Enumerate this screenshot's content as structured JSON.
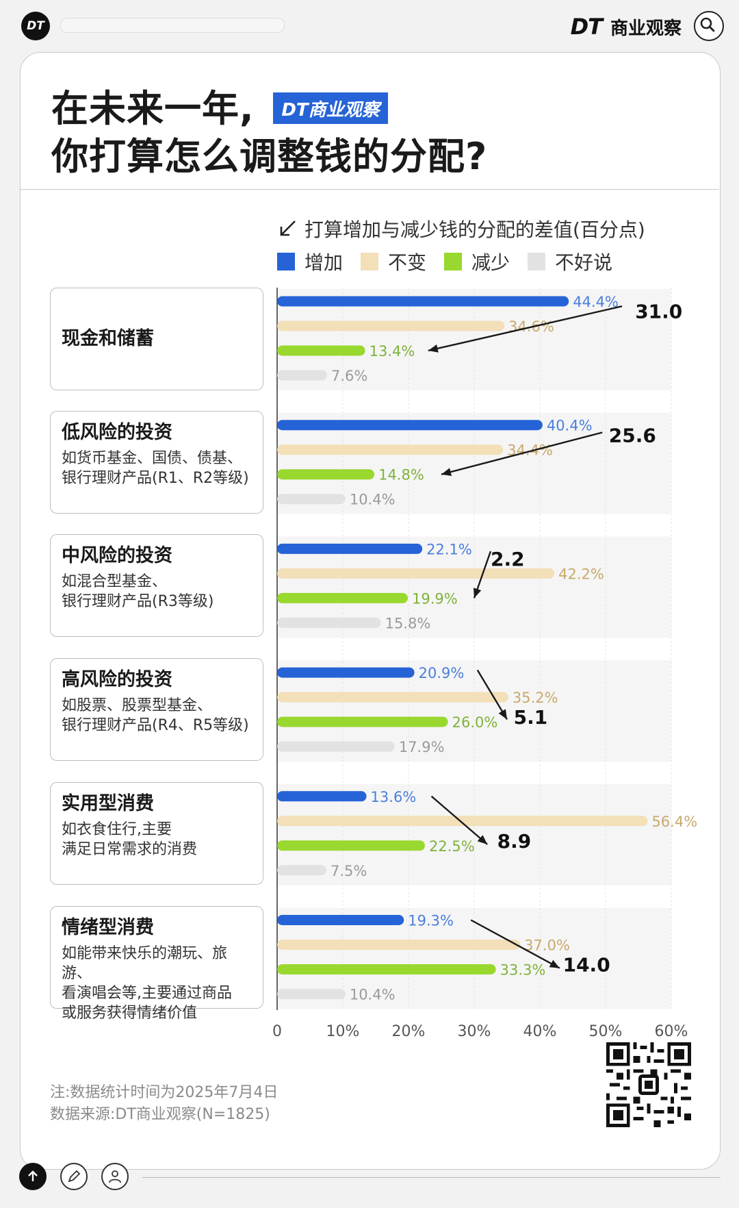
{
  "header": {
    "logo_text": "DT",
    "brand_dt": "DT",
    "brand_name": "商业观察"
  },
  "title": {
    "line1": "在未来一年,",
    "line2": "你打算怎么调整钱的分配?",
    "badge": "DT商业观察"
  },
  "legend": {
    "diff_label": "打算增加与减少钱的分配的差值(百分点)",
    "items": [
      {
        "label": "增加",
        "color": "#2563d6"
      },
      {
        "label": "不变",
        "color": "#f3dfb8"
      },
      {
        "label": "减少",
        "color": "#99d82f"
      },
      {
        "label": "不好说",
        "color": "#e2e2e2"
      }
    ]
  },
  "categories": [
    {
      "name": "现金和储蓄",
      "desc": ""
    },
    {
      "name": "低风险的投资",
      "desc": "如货币基金、国债、债基、\n银行理财产品(R1、R2等级)"
    },
    {
      "name": "中风险的投资",
      "desc": "如混合型基金、\n银行理财产品(R3等级)"
    },
    {
      "name": "高风险的投资",
      "desc": "如股票、股票型基金、\n银行理财产品(R4、R5等级)"
    },
    {
      "name": "实用型消费",
      "desc": "如衣食住行,主要\n满足日常需求的消费"
    },
    {
      "name": "情绪型消费",
      "desc": "如能带来快乐的潮玩、旅游、\n看演唱会等,主要通过商品\n或服务获得情绪价值"
    }
  ],
  "chart_data": {
    "type": "bar",
    "orientation": "horizontal",
    "categories": [
      "现金和储蓄",
      "低风险的投资",
      "中风险的投资",
      "高风险的投资",
      "实用型消费",
      "情绪型消费"
    ],
    "series": [
      {
        "name": "增加",
        "color": "#2563d6",
        "label_color": "#4a7fdc",
        "values": [
          44.4,
          40.4,
          22.1,
          20.9,
          13.6,
          19.3
        ]
      },
      {
        "name": "不变",
        "color": "#f3dfb8",
        "label_color": "#c9a96a",
        "values": [
          34.6,
          34.4,
          42.2,
          35.2,
          56.4,
          37.0
        ]
      },
      {
        "name": "减少",
        "color": "#99d82f",
        "label_color": "#7fb23a",
        "values": [
          13.4,
          14.8,
          19.9,
          26.0,
          22.5,
          33.3
        ]
      },
      {
        "name": "不好说",
        "color": "#e2e2e2",
        "label_color": "#9a9a9a",
        "values": [
          7.6,
          10.4,
          15.8,
          17.9,
          7.5,
          10.4
        ]
      }
    ],
    "differences": [
      "31.0",
      "25.6",
      "2.2",
      "5.1",
      "8.9",
      "14.0"
    ],
    "xlim": [
      0,
      60
    ],
    "xticks": [
      "0",
      "10%",
      "20%",
      "30%",
      "40%",
      "50%",
      "60%"
    ],
    "grid": true
  },
  "footer": {
    "note": "注:数据统计时间为2025年7月4日",
    "source": "数据来源:DT商业观察(N=1825)"
  }
}
